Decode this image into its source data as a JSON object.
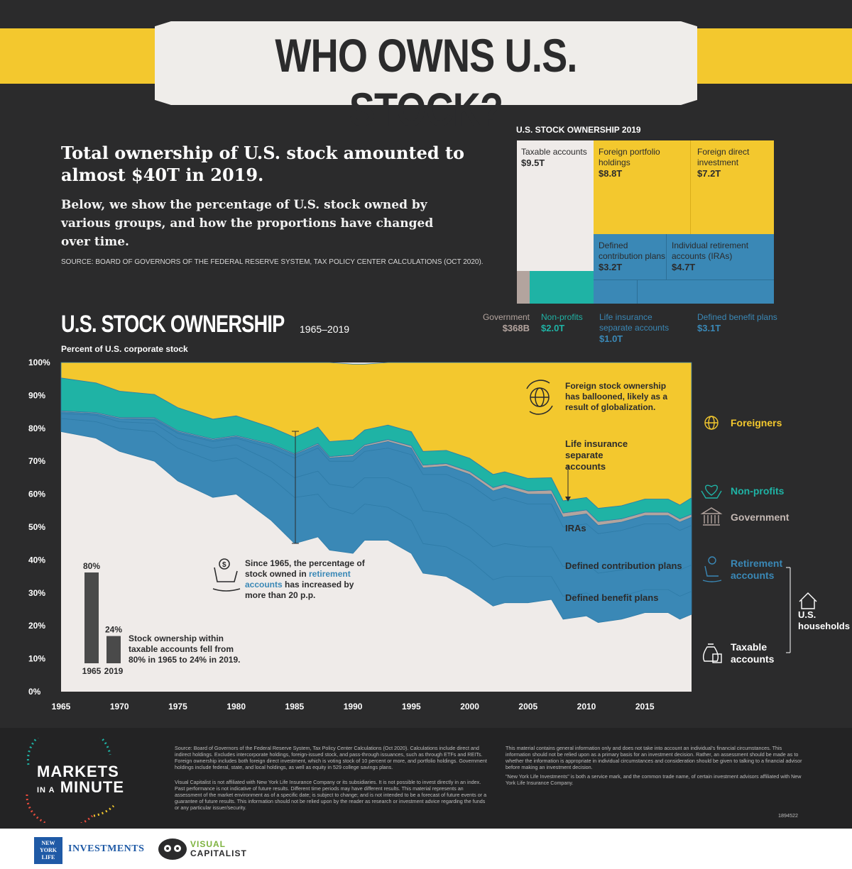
{
  "header": {
    "title": "WHO OWNS U.S. STOCK?"
  },
  "intro": {
    "headline": "Total ownership of U.S. stock amounted to almost $40T in 2019.",
    "body": "Below, we show the percentage of U.S. stock owned by various groups, and how the proportions have changed over time.",
    "source": "SOURCE: BOARD OF GOVERNORS OF THE FEDERAL RESERVE SYSTEM, TAX POLICY CENTER CALCULATIONS (OCT 2020)."
  },
  "treemap": {
    "title": "U.S. STOCK OWNERSHIP 2019",
    "cells": [
      {
        "name": "Taxable accounts",
        "value": "$9.5T",
        "color": "#efebe9"
      },
      {
        "name": "Foreign portfolio holdings",
        "value": "$8.8T",
        "color": "#f3c82e"
      },
      {
        "name": "Foreign direct investment",
        "value": "$7.2T",
        "color": "#f3c82e"
      },
      {
        "name": "Defined contribution plans",
        "value": "$3.2T",
        "color": "#3a88b6"
      },
      {
        "name": "Individual retirement accounts (IRAs)",
        "value": "$4.7T",
        "color": "#3a88b6"
      },
      {
        "name": "Government",
        "value": "$368B",
        "color": "#b3a49e"
      },
      {
        "name": "Non-profits",
        "value": "$2.0T",
        "color": "#1fb3a5"
      },
      {
        "name": "Life insurance separate accounts",
        "value": "$1.0T",
        "color": "#3a88b6"
      },
      {
        "name": "Defined benefit plans",
        "value": "$3.1T",
        "color": "#3a88b6"
      }
    ]
  },
  "chart": {
    "title": "U.S. STOCK OWNERSHIP",
    "years": "1965–2019",
    "subtitle": "Percent of U.S. corporate stock",
    "annotations": {
      "foreign": "Foreign stock ownership has ballooned, likely as a result of globalization.",
      "life": "Life insurance separate accounts",
      "iras": "IRAs",
      "dc": "Defined contribution plans",
      "db": "Defined benefit plans",
      "retire_pre": "Since 1965, the percentage of stock owned in ",
      "retire_hl": "retirement accounts",
      "retire_mid": " has increased by more than ",
      "retire_end": "20 p.p.",
      "taxable_pre": "Stock ownership within taxable accounts fell from ",
      "taxable_a": "80%",
      "taxable_mid": " in 1965 to ",
      "taxable_b": "24%",
      "taxable_end": " in 2019."
    },
    "legend": {
      "foreigners": "Foreigners",
      "nonprofits": "Non-profits",
      "government": "Government",
      "retirement": "Retirement accounts",
      "households": "U.S. households",
      "taxable": "Taxable accounts"
    },
    "inset": {
      "values": [
        80,
        24
      ],
      "labels": [
        "80%",
        "24%"
      ],
      "years": [
        "1965",
        "2019"
      ]
    }
  },
  "chart_data": {
    "type": "area",
    "stacked": true,
    "title": "U.S. STOCK OWNERSHIP",
    "ylabel": "Percent of U.S. corporate stock",
    "ylim": [
      0,
      100
    ],
    "yticks": [
      "0%",
      "10%",
      "20%",
      "30%",
      "40%",
      "50%",
      "60%",
      "70%",
      "80%",
      "90%",
      "100%"
    ],
    "x": [
      1965,
      1968,
      1970,
      1973,
      1975,
      1978,
      1980,
      1983,
      1985,
      1987,
      1988,
      1990,
      1991,
      1993,
      1995,
      1996,
      1998,
      2000,
      2002,
      2003,
      2005,
      2007,
      2008,
      2010,
      2011,
      2013,
      2015,
      2017,
      2018,
      2019
    ],
    "xticks": [
      1965,
      1970,
      1975,
      1980,
      1985,
      1990,
      1995,
      2000,
      2005,
      2010,
      2015
    ],
    "series": [
      {
        "name": "Taxable accounts",
        "color": "#efebe9",
        "values": [
          79,
          77,
          73,
          70,
          64,
          59,
          60,
          52,
          45,
          47,
          43,
          42,
          46,
          46,
          42,
          36,
          35,
          31,
          26,
          27,
          27,
          28,
          22,
          23,
          21,
          22,
          24,
          24,
          22,
          23.5
        ]
      },
      {
        "name": "Defined benefit plans",
        "color": "#3a88b6",
        "values": [
          4,
          5,
          7,
          9,
          10,
          11,
          11,
          13,
          14,
          13,
          13,
          12,
          11,
          10,
          10,
          9,
          9,
          9,
          8,
          8,
          8,
          7,
          7,
          7,
          7,
          7,
          7,
          7,
          7,
          7
        ]
      },
      {
        "name": "Defined contribution plans",
        "color": "#3a88b6",
        "values": [
          1.5,
          2,
          2,
          2.5,
          3,
          4,
          4,
          5,
          6,
          7,
          7,
          8,
          8,
          9,
          10,
          10,
          10,
          10,
          10,
          10,
          9,
          9,
          9,
          9,
          8,
          8,
          8,
          8,
          8,
          8
        ]
      },
      {
        "name": "IRAs",
        "color": "#3a88b6",
        "values": [
          0.5,
          0.5,
          1,
          1,
          1.5,
          2,
          2,
          4,
          6,
          7,
          7,
          8,
          8,
          9,
          10,
          11,
          12,
          13,
          14,
          14,
          13,
          13,
          12,
          12,
          12,
          12,
          12,
          12,
          12,
          12
        ]
      },
      {
        "name": "Life insurance separate accounts",
        "color": "#3a88b6",
        "values": [
          0,
          0,
          0,
          0.5,
          0.5,
          0.5,
          0.5,
          1,
          1,
          1,
          1,
          1.5,
          1.5,
          2,
          2,
          2,
          2.5,
          3,
          3,
          3,
          3,
          3,
          3,
          3,
          2.5,
          2.5,
          2.5,
          2.5,
          2.5,
          2.5
        ]
      },
      {
        "name": "Government",
        "color": "#b3a49e",
        "values": [
          0.3,
          0.3,
          0.3,
          0.3,
          0.3,
          0.3,
          0.3,
          0.3,
          0.3,
          0.4,
          0.4,
          0.5,
          0.5,
          0.6,
          0.7,
          0.8,
          0.8,
          0.9,
          1,
          1,
          1,
          1.2,
          1.3,
          1.2,
          1.2,
          1,
          1,
          1,
          1,
          0.9
        ]
      },
      {
        "name": "Non-profits",
        "color": "#1fb3a5",
        "values": [
          10,
          9,
          8,
          7,
          7,
          6,
          6,
          5,
          5,
          5,
          4.6,
          4.5,
          4.5,
          4.4,
          4.3,
          4.2,
          4,
          4,
          4,
          3.8,
          3.8,
          3.8,
          3.7,
          3.8,
          4,
          4,
          4,
          4,
          4.2,
          5
        ]
      },
      {
        "name": "Foreigners",
        "color": "#f3c82e",
        "values": [
          4.7,
          6.2,
          8.7,
          9.7,
          13.7,
          17.2,
          16.2,
          19.7,
          22.7,
          19.6,
          24,
          23,
          20,
          19,
          21,
          27,
          26.7,
          29.1,
          34,
          33.2,
          35.2,
          35,
          42,
          41,
          44.3,
          43.5,
          41.5,
          41.5,
          43.3,
          41.1
        ]
      }
    ]
  },
  "footer": {
    "brand_line1": "MARKETS",
    "brand_in": "IN A",
    "brand_line2": "MINUTE",
    "src": "Source: Board of Governors of the Federal Reserve System, Tax Policy Center Calculations (Oct 2020). Calculations include direct and indirect holdings. Excludes intercorporate holdings, foreign-issued stock, and pass-through issuances, such as through ETFs and REITs. Foreign ownership includes both foreign direct investment, which is voting stock of 10 percent or more, and portfolio holdings. Government holdings include federal, state, and local holdings, as well as equity in 529 college savings plans.",
    "disclaimer1": "Visual Capitalist is not affiliated with New York Life Insurance Company or its subsidiaries. It is not possible to invest directly in an index. Past performance is not indicative of future results. Different time periods may have different results. This material represents an assessment of the market environment as of a specific date; is subject to change; and is not intended to be a forecast of future events or a guarantee of future results. This information should not be relied upon by the reader as research or investment advice regarding the funds or any particular issuer/security.",
    "disclaimer2": "This material contains general information only and does not take into account an individual's financial circumstances. This information should not be relied upon as a primary basis for an investment decision. Rather, an assessment should be made as to whether the information is appropriate in individual circumstances and consideration should be given to talking to a financial advisor before making an investment decision.",
    "disclaimer3": "\"New York Life Investments\" is both a service mark, and the common trade name, of certain investment advisors affiliated with New York Life Insurance Company.",
    "code": "1894522",
    "nyl_logo": "NEW YORK LIFE",
    "nyl_investments": "INVESTMENTS",
    "vc1": "VISUAL",
    "vc2": "CAPITALIST"
  }
}
